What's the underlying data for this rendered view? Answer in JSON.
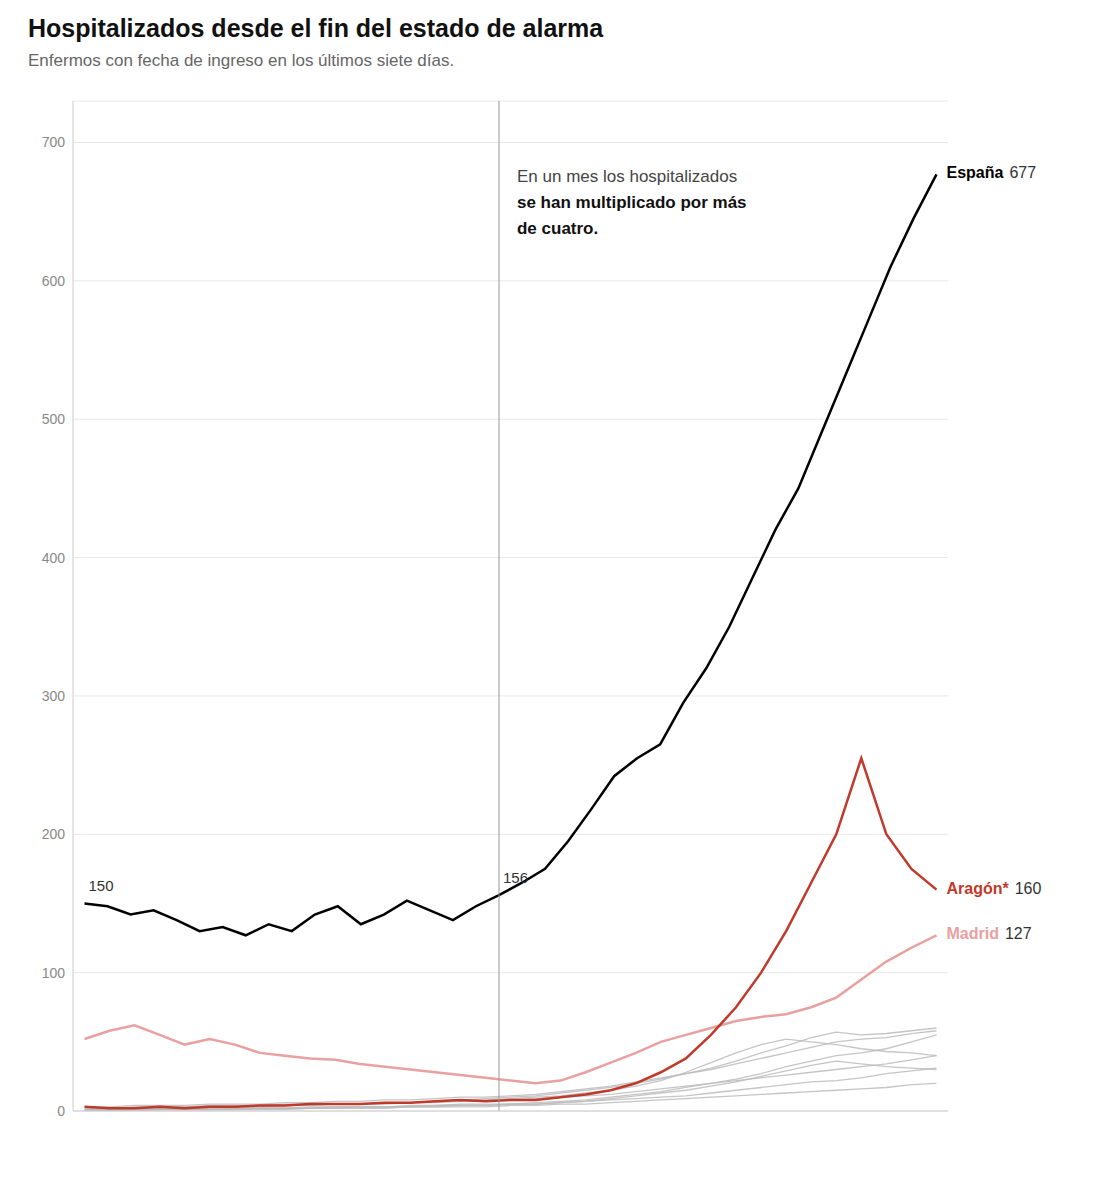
{
  "chart_data": {
    "type": "line",
    "title": "Hospitalizados desde el fin del estado de alarma",
    "subtitle": "Enfermos con fecha de ingreso en los últimos siete días.",
    "ylim": [
      0,
      730
    ],
    "yticks": [
      0,
      100,
      200,
      300,
      400,
      500,
      600,
      700
    ],
    "grid": true,
    "tick_labels": "y",
    "vline": 18,
    "annotations": [
      "En un mes los hospitalizados",
      "se han multiplicado por más",
      "de cuatro."
    ],
    "series": [
      {
        "color": "#bbbbbb",
        "values": [
          2,
          2,
          3,
          3,
          3,
          4,
          4,
          4,
          5,
          5,
          5,
          5,
          6,
          6,
          7,
          8,
          8,
          9,
          10,
          11,
          13,
          15,
          18,
          22,
          28,
          35,
          42,
          48,
          52,
          50,
          48,
          45,
          43,
          42,
          40
        ]
      },
      {
        "color": "#bbbbbb",
        "values": [
          1,
          1,
          1,
          1,
          2,
          2,
          2,
          2,
          2,
          3,
          3,
          3,
          3,
          4,
          4,
          5,
          5,
          5,
          6,
          7,
          8,
          10,
          12,
          14,
          17,
          20,
          23,
          27,
          32,
          36,
          40,
          42,
          45,
          50,
          55
        ]
      },
      {
        "color": "#bbbbbb",
        "values": [
          0,
          1,
          1,
          1,
          1,
          1,
          2,
          2,
          2,
          2,
          3,
          3,
          3,
          3,
          4,
          4,
          4,
          5,
          5,
          6,
          7,
          9,
          11,
          13,
          15,
          18,
          21,
          25,
          29,
          33,
          36,
          34,
          32,
          31,
          30
        ]
      },
      {
        "color": "#bbbbbb",
        "values": [
          1,
          2,
          2,
          2,
          3,
          3,
          3,
          4,
          4,
          4,
          5,
          5,
          5,
          6,
          6,
          7,
          7,
          8,
          9,
          10,
          11,
          12,
          14,
          16,
          18,
          20,
          22,
          24,
          26,
          28,
          30,
          32,
          34,
          37,
          40
        ]
      },
      {
        "color": "#bbbbbb",
        "values": [
          3,
          3,
          4,
          4,
          4,
          5,
          5,
          5,
          6,
          6,
          7,
          7,
          8,
          8,
          9,
          10,
          10,
          11,
          12,
          14,
          16,
          18,
          21,
          24,
          27,
          30,
          34,
          38,
          42,
          46,
          50,
          52,
          53,
          56,
          58
        ]
      },
      {
        "color": "#bbbbbb",
        "values": [
          0,
          0,
          1,
          1,
          1,
          1,
          1,
          2,
          2,
          2,
          2,
          3,
          3,
          3,
          3,
          4,
          4,
          5,
          5,
          6,
          7,
          8,
          9,
          10,
          11,
          13,
          15,
          17,
          19,
          21,
          22,
          24,
          27,
          29,
          31
        ]
      },
      {
        "color": "#bbbbbb",
        "values": [
          1,
          1,
          2,
          2,
          2,
          3,
          3,
          3,
          4,
          4,
          5,
          5,
          6,
          6,
          7,
          8,
          9,
          10,
          11,
          13,
          15,
          17,
          20,
          23,
          27,
          31,
          36,
          42,
          47,
          53,
          57,
          55,
          56,
          58,
          60
        ]
      },
      {
        "color": "#bbbbbb",
        "values": [
          0,
          0,
          0,
          1,
          1,
          1,
          1,
          1,
          1,
          2,
          2,
          2,
          2,
          3,
          3,
          3,
          3,
          4,
          4,
          5,
          5,
          6,
          7,
          8,
          9,
          10,
          11,
          12,
          13,
          14,
          15,
          16,
          17,
          19,
          20
        ]
      },
      {
        "name": "Madrid",
        "color": "#e8a0a0",
        "values": [
          52,
          58,
          62,
          55,
          48,
          52,
          48,
          42,
          40,
          38,
          37,
          34,
          32,
          30,
          28,
          26,
          24,
          22,
          20,
          22,
          28,
          35,
          42,
          50,
          55,
          60,
          65,
          68,
          70,
          75,
          82,
          95,
          108,
          118,
          127
        ]
      },
      {
        "name": "Aragón*",
        "color": "#c0392b",
        "values": [
          3,
          2,
          2,
          3,
          2,
          3,
          3,
          4,
          4,
          5,
          5,
          5,
          6,
          6,
          7,
          8,
          7,
          8,
          8,
          10,
          12,
          15,
          20,
          28,
          38,
          55,
          75,
          100,
          130,
          165,
          200,
          255,
          200,
          175,
          160
        ]
      },
      {
        "name": "España",
        "color": "#000000",
        "values": [
          150,
          148,
          142,
          145,
          138,
          130,
          133,
          127,
          135,
          130,
          142,
          148,
          135,
          142,
          152,
          145,
          138,
          148,
          156,
          165,
          175,
          195,
          218,
          242,
          255,
          265,
          295,
          320,
          350,
          385,
          420,
          450,
          490,
          530,
          570,
          610,
          645,
          677
        ],
        "labeled_points": [
          0,
          18
        ]
      }
    ]
  }
}
